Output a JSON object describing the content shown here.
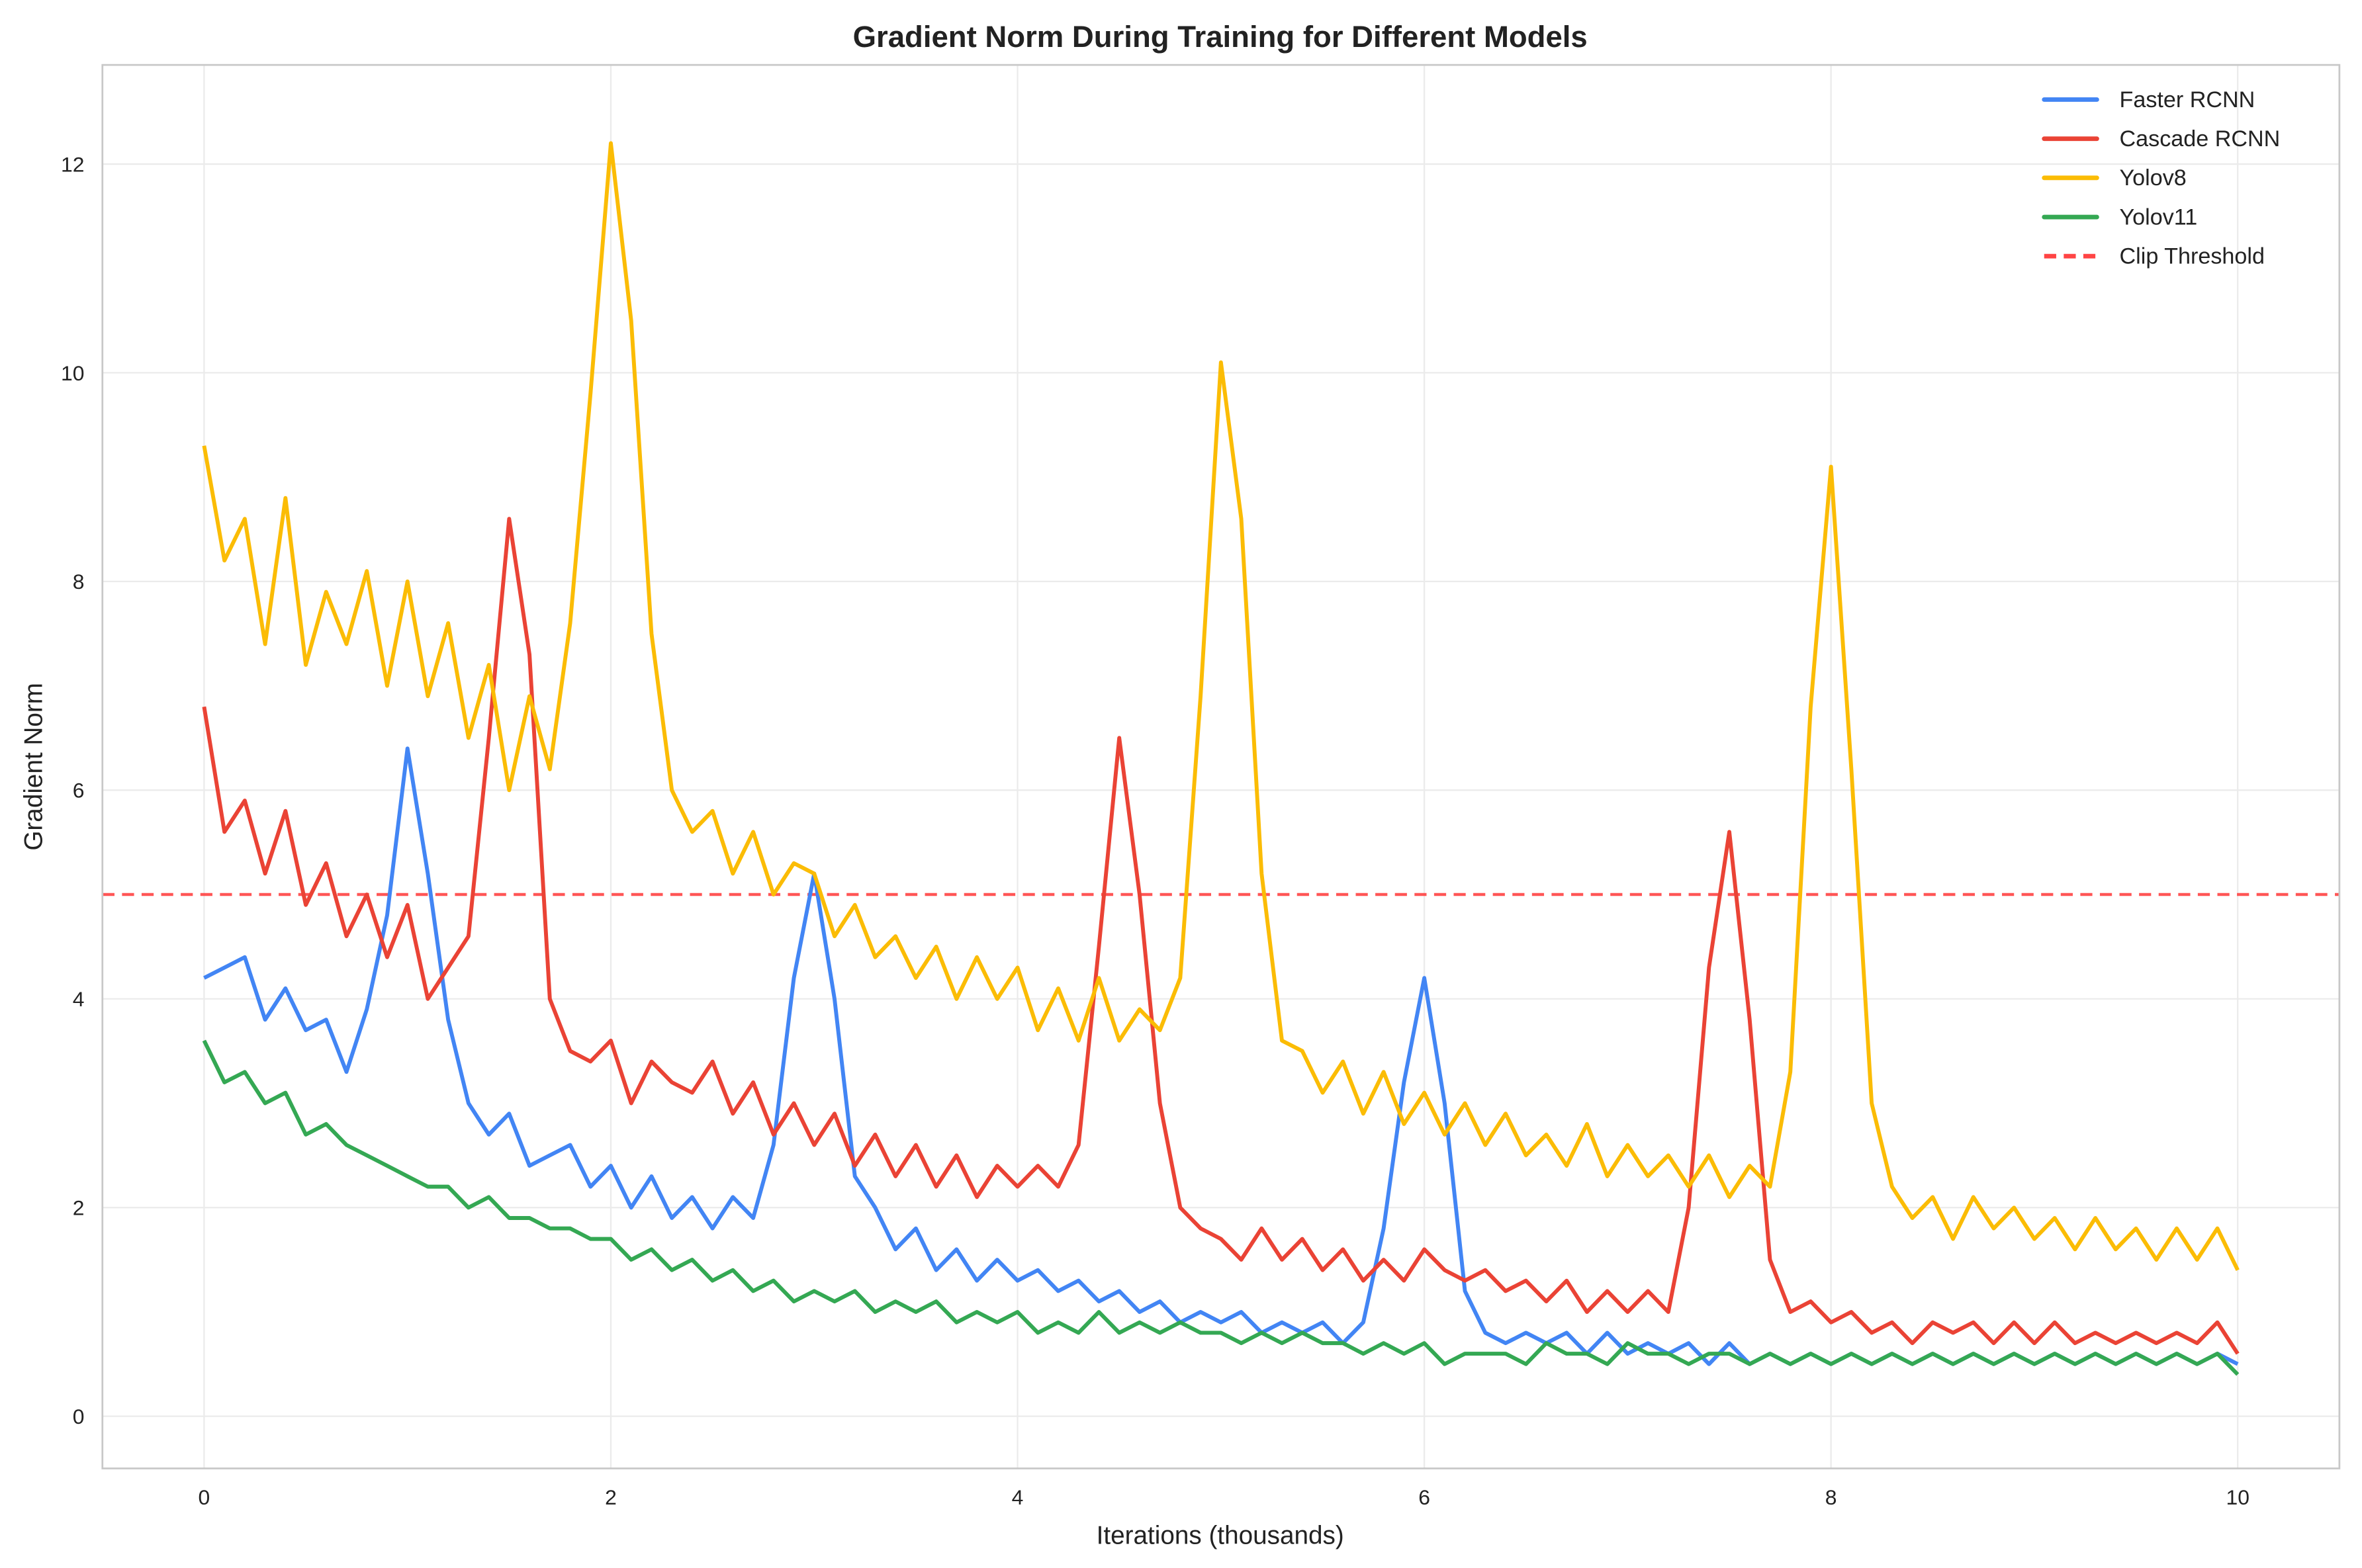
{
  "chart_data": {
    "type": "line",
    "title": "Gradient Norm During Training for Different Models",
    "xlabel": "Iterations (thousands)",
    "ylabel": "Gradient Norm",
    "xlim": [
      -0.5,
      10.5
    ],
    "ylim": [
      -0.5,
      12.95
    ],
    "xticks": [
      0,
      2,
      4,
      6,
      8,
      10
    ],
    "yticks": [
      0,
      2,
      4,
      6,
      8,
      10,
      12
    ],
    "grid": true,
    "legend_position": "top-right",
    "x": [
      0,
      0.1,
      0.2,
      0.3,
      0.4,
      0.5,
      0.6,
      0.7,
      0.8,
      0.9,
      1,
      1.1,
      1.2,
      1.3,
      1.4,
      1.5,
      1.6,
      1.7,
      1.8,
      1.9,
      2,
      2.1,
      2.2,
      2.3,
      2.4,
      2.5,
      2.6,
      2.7,
      2.8,
      2.9,
      3,
      3.1,
      3.2,
      3.3,
      3.4,
      3.5,
      3.6,
      3.7,
      3.8,
      3.9,
      4,
      4.1,
      4.2,
      4.3,
      4.4,
      4.5,
      4.6,
      4.7,
      4.8,
      4.9,
      5,
      5.1,
      5.2,
      5.3,
      5.4,
      5.5,
      5.6,
      5.7,
      5.8,
      5.9,
      6,
      6.1,
      6.2,
      6.3,
      6.4,
      6.5,
      6.6,
      6.7,
      6.8,
      6.9,
      7,
      7.1,
      7.2,
      7.3,
      7.4,
      7.5,
      7.6,
      7.7,
      7.8,
      7.9,
      8,
      8.1,
      8.2,
      8.3,
      8.4,
      8.5,
      8.6,
      8.7,
      8.8,
      8.9,
      9,
      9.1,
      9.2,
      9.3,
      9.4,
      9.5,
      9.6,
      9.7,
      9.8,
      9.9,
      10
    ],
    "series": [
      {
        "name": "Faster RCNN",
        "color": "#4285F4",
        "values": [
          4.2,
          4.3,
          4.4,
          3.8,
          4.1,
          3.7,
          3.8,
          3.3,
          3.9,
          4.8,
          6.4,
          5.2,
          3.8,
          3.0,
          2.7,
          2.9,
          2.4,
          2.5,
          2.6,
          2.2,
          2.4,
          2.0,
          2.3,
          1.9,
          2.1,
          1.8,
          2.1,
          1.9,
          2.6,
          4.2,
          5.2,
          4.0,
          2.3,
          2.0,
          1.6,
          1.8,
          1.4,
          1.6,
          1.3,
          1.5,
          1.3,
          1.4,
          1.2,
          1.3,
          1.1,
          1.2,
          1.0,
          1.1,
          0.9,
          1.0,
          0.9,
          1.0,
          0.8,
          0.9,
          0.8,
          0.9,
          0.7,
          0.9,
          1.8,
          3.2,
          4.2,
          3.0,
          1.2,
          0.8,
          0.7,
          0.8,
          0.7,
          0.8,
          0.6,
          0.8,
          0.6,
          0.7,
          0.6,
          0.7,
          0.5,
          0.7,
          0.5,
          0.6,
          0.5,
          0.6,
          0.5,
          0.6,
          0.5,
          0.6,
          0.5,
          0.6,
          0.5,
          0.6,
          0.5,
          0.6,
          0.5,
          0.6,
          0.5,
          0.6,
          0.5,
          0.6,
          0.5,
          0.6,
          0.5,
          0.6,
          0.5
        ]
      },
      {
        "name": "Cascade RCNN",
        "color": "#EA4335",
        "values": [
          6.8,
          5.6,
          5.9,
          5.2,
          5.8,
          4.9,
          5.3,
          4.6,
          5.0,
          4.4,
          4.9,
          4.0,
          4.3,
          4.6,
          6.5,
          8.6,
          7.3,
          4.0,
          3.5,
          3.4,
          3.6,
          3.0,
          3.4,
          3.2,
          3.1,
          3.4,
          2.9,
          3.2,
          2.7,
          3.0,
          2.6,
          2.9,
          2.4,
          2.7,
          2.3,
          2.6,
          2.2,
          2.5,
          2.1,
          2.4,
          2.2,
          2.4,
          2.2,
          2.6,
          4.5,
          6.5,
          5.0,
          3.0,
          2.0,
          1.8,
          1.7,
          1.5,
          1.8,
          1.5,
          1.7,
          1.4,
          1.6,
          1.3,
          1.5,
          1.3,
          1.6,
          1.4,
          1.3,
          1.4,
          1.2,
          1.3,
          1.1,
          1.3,
          1.0,
          1.2,
          1.0,
          1.2,
          1.0,
          2.0,
          4.3,
          5.6,
          3.8,
          1.5,
          1.0,
          1.1,
          0.9,
          1.0,
          0.8,
          0.9,
          0.7,
          0.9,
          0.8,
          0.9,
          0.7,
          0.9,
          0.7,
          0.9,
          0.7,
          0.8,
          0.7,
          0.8,
          0.7,
          0.8,
          0.7,
          0.9,
          0.6
        ]
      },
      {
        "name": "Yolov8",
        "color": "#FBBC05",
        "values": [
          9.3,
          8.2,
          8.6,
          7.4,
          8.8,
          7.2,
          7.9,
          7.4,
          8.1,
          7.0,
          8.0,
          6.9,
          7.6,
          6.5,
          7.2,
          6.0,
          6.9,
          6.2,
          7.6,
          9.8,
          12.2,
          10.5,
          7.5,
          6.0,
          5.6,
          5.8,
          5.2,
          5.6,
          5.0,
          5.3,
          5.2,
          4.6,
          4.9,
          4.4,
          4.6,
          4.2,
          4.5,
          4.0,
          4.4,
          4.0,
          4.3,
          3.7,
          4.1,
          3.6,
          4.2,
          3.6,
          3.9,
          3.7,
          4.2,
          6.9,
          10.1,
          8.6,
          5.2,
          3.6,
          3.5,
          3.1,
          3.4,
          2.9,
          3.3,
          2.8,
          3.1,
          2.7,
          3.0,
          2.6,
          2.9,
          2.5,
          2.7,
          2.4,
          2.8,
          2.3,
          2.6,
          2.3,
          2.5,
          2.2,
          2.5,
          2.1,
          2.4,
          2.2,
          3.3,
          6.8,
          9.1,
          6.2,
          3.0,
          2.2,
          1.9,
          2.1,
          1.7,
          2.1,
          1.8,
          2.0,
          1.7,
          1.9,
          1.6,
          1.9,
          1.6,
          1.8,
          1.5,
          1.8,
          1.5,
          1.8,
          1.4
        ]
      },
      {
        "name": "Yolov11",
        "color": "#34A853",
        "values": [
          3.6,
          3.2,
          3.3,
          3.0,
          3.1,
          2.7,
          2.8,
          2.6,
          2.5,
          2.4,
          2.3,
          2.2,
          2.2,
          2.0,
          2.1,
          1.9,
          1.9,
          1.8,
          1.8,
          1.7,
          1.7,
          1.5,
          1.6,
          1.4,
          1.5,
          1.3,
          1.4,
          1.2,
          1.3,
          1.1,
          1.2,
          1.1,
          1.2,
          1.0,
          1.1,
          1.0,
          1.1,
          0.9,
          1.0,
          0.9,
          1.0,
          0.8,
          0.9,
          0.8,
          1.0,
          0.8,
          0.9,
          0.8,
          0.9,
          0.8,
          0.8,
          0.7,
          0.8,
          0.7,
          0.8,
          0.7,
          0.7,
          0.6,
          0.7,
          0.6,
          0.7,
          0.5,
          0.6,
          0.6,
          0.6,
          0.5,
          0.7,
          0.6,
          0.6,
          0.5,
          0.7,
          0.6,
          0.6,
          0.5,
          0.6,
          0.6,
          0.5,
          0.6,
          0.5,
          0.6,
          0.5,
          0.6,
          0.5,
          0.6,
          0.5,
          0.6,
          0.5,
          0.6,
          0.5,
          0.6,
          0.5,
          0.6,
          0.5,
          0.6,
          0.5,
          0.6,
          0.5,
          0.6,
          0.5,
          0.6,
          0.4
        ]
      }
    ],
    "threshold": {
      "name": "Clip Threshold",
      "value": 5,
      "color": "#FF4444",
      "style": "dashed"
    }
  }
}
